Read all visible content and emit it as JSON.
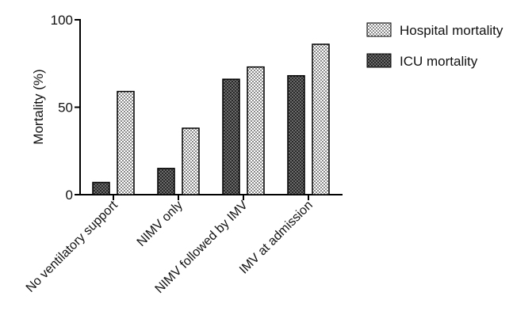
{
  "chart_data": {
    "type": "bar",
    "title": "",
    "xlabel": "",
    "ylabel": "Mortality (%)",
    "ylim": [
      0,
      100
    ],
    "yticks": [
      0,
      50,
      100
    ],
    "categories": [
      "No ventilatory support",
      "NIMV only",
      "NIMV followed by IMV",
      "IMV at admission"
    ],
    "series": [
      {
        "name": "ICU mortality",
        "values": [
          7,
          15,
          66,
          68
        ],
        "pattern": "dark-checker",
        "color": "#333333"
      },
      {
        "name": "Hospital mortality",
        "values": [
          59,
          38,
          73,
          86
        ],
        "pattern": "light-checker",
        "color": "#b5b5b5"
      }
    ],
    "legend_order": [
      "Hospital mortality",
      "ICU mortality"
    ],
    "legend_position": "top-right",
    "grid": false
  }
}
